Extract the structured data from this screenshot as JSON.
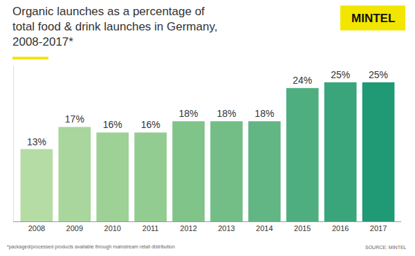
{
  "chart_data": {
    "type": "bar",
    "title": "Organic launches as a percentage of\ntotal food & drink launches in Germany,\n2008-2017*",
    "categories": [
      "2008",
      "2009",
      "2010",
      "2011",
      "2012",
      "2013",
      "2014",
      "2015",
      "2016",
      "2017"
    ],
    "values": [
      13,
      17,
      16,
      16,
      18,
      18,
      18,
      24,
      25,
      25
    ],
    "value_labels": [
      "13%",
      "17%",
      "16%",
      "16%",
      "18%",
      "18%",
      "18%",
      "24%",
      "25%",
      "25%"
    ],
    "colors": [
      "#b5dca5",
      "#a8d69c",
      "#9dd195",
      "#93cc90",
      "#80c48a",
      "#72be86",
      "#62b683",
      "#4fae80",
      "#3aa57b",
      "#1f9a74"
    ],
    "ylim": [
      0,
      28
    ],
    "yticks": [],
    "grid": false,
    "data_labels": true,
    "tick_labels": "x",
    "note": "*packaged/processed products available through mainstream retail distribution",
    "source": "SOURCE: MINTEL",
    "logo": "MINTEL"
  }
}
